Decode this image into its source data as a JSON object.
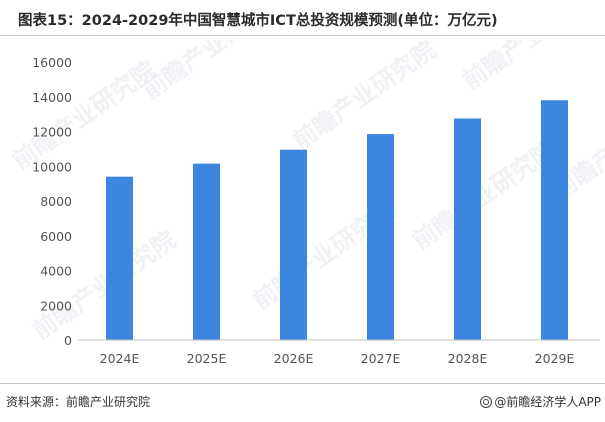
{
  "header": {
    "title": "图表15：2024-2029年中国智慧城市ICT总投资规模预测(单位：万亿元)"
  },
  "footer": {
    "source": "资料来源：前瞻产业研究院",
    "brand": "@前瞻经济学人APP"
  },
  "watermark": {
    "text": "前瞻产业研究院"
  },
  "colors": {
    "bar": "#3d86e0",
    "axis_text": "#555555",
    "axis_line": "#bfbfbf"
  },
  "chart_data": {
    "type": "bar",
    "title": "图表15：2024-2029年中国智慧城市ICT总投资规模预测(单位：万亿元)",
    "categories": [
      "2024E",
      "2025E",
      "2026E",
      "2027E",
      "2028E",
      "2029E"
    ],
    "values": [
      9400,
      10150,
      10950,
      11850,
      12750,
      13800
    ],
    "xlabel": "",
    "ylabel": "",
    "ylim": [
      0,
      16000
    ],
    "yticks": [
      "0",
      "2000",
      "4000",
      "6000",
      "8000",
      "10000",
      "12000",
      "14000",
      "16000"
    ],
    "grid": false,
    "legend": "none"
  }
}
